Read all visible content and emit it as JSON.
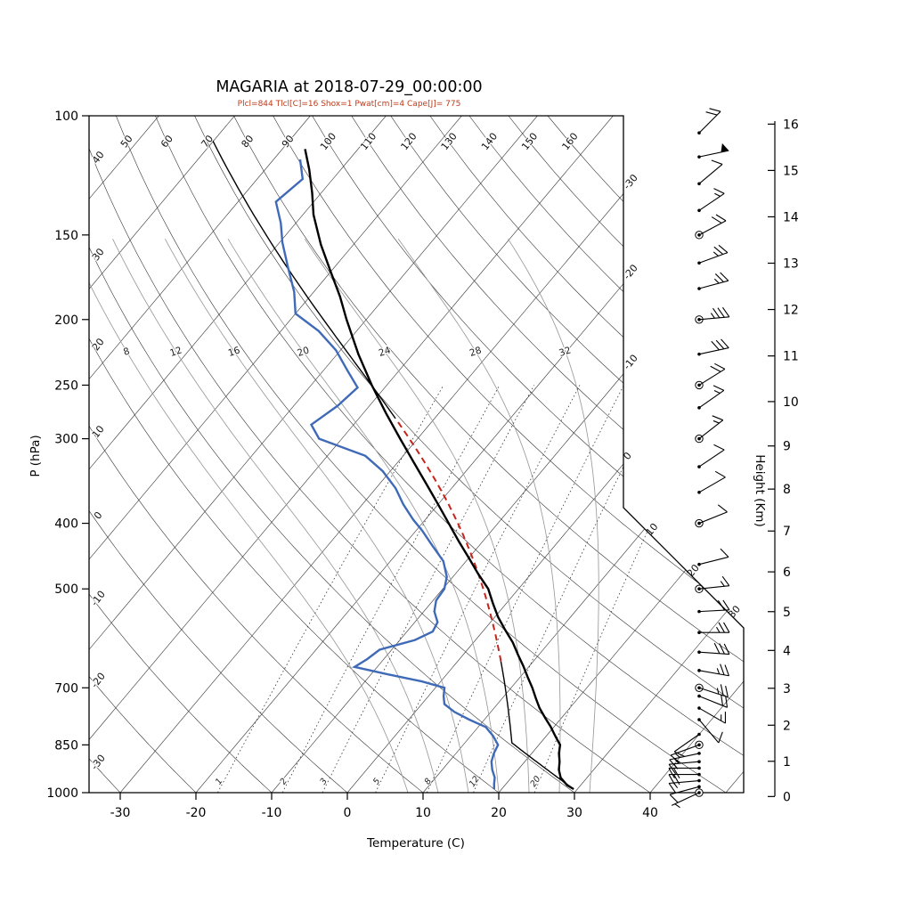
{
  "title": "MAGARIA at 2018-07-29_00:00:00",
  "station": "MAGARIA",
  "datetime": "2018-07-29_00:00:00",
  "params_line": "Plcl=844 Tlcl[C]=16 Shox=1 Pwat[cm]=4 Cape[J]= 775",
  "indices": {
    "Plcl": 844,
    "Tlcl_C": 16,
    "Shox": 1,
    "Pwat_cm": 4,
    "Cape_J": 775
  },
  "colors": {
    "temperature": "#000000",
    "dewpoint": "#3f6ab8",
    "parcel": "#000000",
    "parcel_ascent": "#c5241c",
    "params_text": "#bf3a1a",
    "grid": "#333333",
    "moist_adiabat": "#9a9a9a",
    "mixing_ratio": "#3a3a3a",
    "axis": "#000000"
  },
  "chart_data": {
    "type": "line",
    "title": "MAGARIA at 2018-07-29_00:00:00",
    "subtitle": "Plcl=844 Tlcl[C]=16 Shox=1 Pwat[cm]=4 Cape[J]= 775",
    "projection": "skew-T log-p",
    "x_axis": {
      "label": "Temperature (C)",
      "units": "C",
      "ticks": [
        -30,
        -20,
        -10,
        0,
        10,
        20,
        30,
        40
      ]
    },
    "y_axis": {
      "label": "P (hPa)",
      "units": "hPa",
      "scale": "log",
      "range": [
        100,
        1000
      ],
      "ticks": [
        100,
        150,
        200,
        250,
        300,
        400,
        500,
        700,
        850,
        1000
      ]
    },
    "height_axis": {
      "label": "Height (Km)",
      "units": "km",
      "ticks": [
        0,
        1,
        2,
        3,
        4,
        5,
        6,
        7,
        8,
        9,
        10,
        11,
        12,
        13,
        14,
        15,
        16
      ]
    },
    "grid_labels": {
      "dry_adiabats_top": [
        50,
        60,
        70,
        80,
        90,
        100,
        110,
        120,
        130,
        140,
        150,
        160
      ],
      "dry_adiabats_left": [
        40,
        30,
        20,
        10,
        0,
        -10,
        -20,
        -30
      ],
      "isotherms_right": [
        -30,
        -20,
        -10,
        0,
        10,
        20,
        30
      ],
      "moist_adiabats": [
        8,
        12,
        16,
        20,
        24,
        28,
        32
      ],
      "mixing_ratio_gkg": [
        1,
        2,
        3,
        5,
        8,
        12,
        20
      ]
    },
    "series": [
      {
        "name": "temperature",
        "label": "Environment temperature",
        "color": "#000000",
        "points_p_T": [
          [
            988,
            29.5
          ],
          [
            975,
            28.2
          ],
          [
            950,
            26.5
          ],
          [
            925,
            25.4
          ],
          [
            900,
            24.6
          ],
          [
            875,
            23.6
          ],
          [
            850,
            22.8
          ],
          [
            825,
            21.2
          ],
          [
            800,
            19.6
          ],
          [
            775,
            17.8
          ],
          [
            750,
            16.0
          ],
          [
            725,
            14.4
          ],
          [
            700,
            12.8
          ],
          [
            675,
            11.0
          ],
          [
            650,
            9.2
          ],
          [
            625,
            7.2
          ],
          [
            600,
            5.2
          ],
          [
            575,
            2.8
          ],
          [
            550,
            0.4
          ],
          [
            525,
            -1.8
          ],
          [
            500,
            -4.0
          ],
          [
            475,
            -7.0
          ],
          [
            450,
            -10.0
          ],
          [
            425,
            -13.2
          ],
          [
            400,
            -16.5
          ],
          [
            375,
            -20.0
          ],
          [
            350,
            -23.8
          ],
          [
            325,
            -27.9
          ],
          [
            300,
            -32.3
          ],
          [
            275,
            -37.0
          ],
          [
            250,
            -42.0
          ],
          [
            225,
            -47.2
          ],
          [
            200,
            -52.6
          ],
          [
            185,
            -56.0
          ],
          [
            170,
            -60.0
          ],
          [
            155,
            -64.3
          ],
          [
            140,
            -68.6
          ],
          [
            130,
            -71.2
          ],
          [
            120,
            -74.2
          ],
          [
            112,
            -77.0
          ]
        ]
      },
      {
        "name": "dewpoint",
        "label": "Dew point",
        "color": "#3f6ab8",
        "points_p_T": [
          [
            988,
            19.0
          ],
          [
            970,
            18.4
          ],
          [
            950,
            17.8
          ],
          [
            925,
            16.6
          ],
          [
            900,
            15.6
          ],
          [
            875,
            15.0
          ],
          [
            850,
            14.6
          ],
          [
            825,
            13.0
          ],
          [
            800,
            11.0
          ],
          [
            780,
            8.0
          ],
          [
            760,
            5.2
          ],
          [
            740,
            3.0
          ],
          [
            720,
            2.0
          ],
          [
            700,
            1.2
          ],
          [
            685,
            -2.5
          ],
          [
            668,
            -8.0
          ],
          [
            652,
            -13.0
          ],
          [
            635,
            -12.2
          ],
          [
            615,
            -11.6
          ],
          [
            595,
            -8.0
          ],
          [
            578,
            -6.6
          ],
          [
            560,
            -7.0
          ],
          [
            540,
            -8.6
          ],
          [
            520,
            -9.6
          ],
          [
            500,
            -9.8
          ],
          [
            480,
            -10.8
          ],
          [
            455,
            -13.0
          ],
          [
            430,
            -16.4
          ],
          [
            410,
            -19.2
          ],
          [
            395,
            -21.6
          ],
          [
            375,
            -24.6
          ],
          [
            355,
            -27.4
          ],
          [
            335,
            -31.0
          ],
          [
            318,
            -35.0
          ],
          [
            300,
            -43.0
          ],
          [
            286,
            -45.6
          ],
          [
            268,
            -44.2
          ],
          [
            252,
            -43.6
          ],
          [
            238,
            -46.8
          ],
          [
            222,
            -50.6
          ],
          [
            208,
            -55.0
          ],
          [
            196,
            -60.0
          ],
          [
            182,
            -62.6
          ],
          [
            168,
            -66.0
          ],
          [
            154,
            -69.6
          ],
          [
            144,
            -72.0
          ],
          [
            134,
            -75.0
          ],
          [
            124,
            -74.0
          ],
          [
            116,
            -76.5
          ]
        ]
      },
      {
        "name": "parcel",
        "label": "Parcel path",
        "color": "#000000",
        "surface_p": 988,
        "surface_T": 29.5,
        "lcl_p": 844,
        "lcl_T": 16.2
      },
      {
        "name": "parcel_ascent",
        "label": "Parcel moist ascent",
        "color": "#c5241c",
        "style": "dashed",
        "p_range": [
          640,
          280
        ]
      }
    ],
    "wind_barbs_circled_levels": [
      1000,
      850,
      700,
      500,
      400,
      300,
      250,
      200,
      150
    ],
    "wind_barbs": [
      {
        "p": 1000,
        "spd": 5,
        "dir": 245
      },
      {
        "p": 980,
        "spd": 10,
        "dir": 255
      },
      {
        "p": 960,
        "spd": 15,
        "dir": 265
      },
      {
        "p": 940,
        "spd": 20,
        "dir": 270
      },
      {
        "p": 920,
        "spd": 20,
        "dir": 270
      },
      {
        "p": 900,
        "spd": 18,
        "dir": 265
      },
      {
        "p": 875,
        "spd": 15,
        "dir": 258
      },
      {
        "p": 850,
        "spd": 15,
        "dir": 250
      },
      {
        "p": 820,
        "spd": 10,
        "dir": 235
      },
      {
        "p": 780,
        "spd": 12,
        "dir": 140
      },
      {
        "p": 750,
        "spd": 15,
        "dir": 120
      },
      {
        "p": 720,
        "spd": 20,
        "dir": 112
      },
      {
        "p": 700,
        "spd": 25,
        "dir": 108
      },
      {
        "p": 660,
        "spd": 28,
        "dir": 100
      },
      {
        "p": 620,
        "spd": 30,
        "dir": 94
      },
      {
        "p": 580,
        "spd": 25,
        "dir": 90
      },
      {
        "p": 540,
        "spd": 20,
        "dir": 87
      },
      {
        "p": 500,
        "spd": 15,
        "dir": 84
      },
      {
        "p": 460,
        "spd": 12,
        "dir": 76
      },
      {
        "p": 400,
        "spd": 10,
        "dir": 68
      },
      {
        "p": 360,
        "spd": 10,
        "dir": 60
      },
      {
        "p": 330,
        "spd": 10,
        "dir": 56
      },
      {
        "p": 300,
        "spd": 15,
        "dir": 52
      },
      {
        "p": 270,
        "spd": 18,
        "dir": 55
      },
      {
        "p": 250,
        "spd": 22,
        "dir": 58
      },
      {
        "p": 225,
        "spd": 30,
        "dir": 78
      },
      {
        "p": 200,
        "spd": 35,
        "dir": 85
      },
      {
        "p": 180,
        "spd": 28,
        "dir": 75
      },
      {
        "p": 165,
        "spd": 25,
        "dir": 70
      },
      {
        "p": 150,
        "spd": 20,
        "dir": 62
      },
      {
        "p": 138,
        "spd": 16,
        "dir": 56
      },
      {
        "p": 126,
        "spd": 12,
        "dir": 50
      },
      {
        "p": 115,
        "spd": 50,
        "dir": 78
      },
      {
        "p": 106,
        "spd": 20,
        "dir": 45
      }
    ]
  }
}
